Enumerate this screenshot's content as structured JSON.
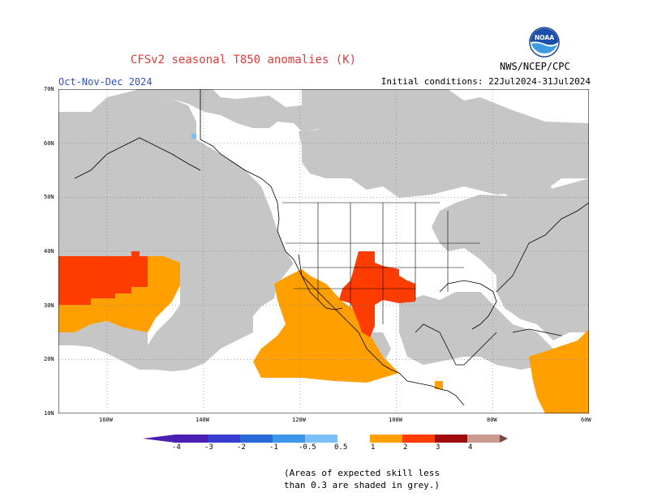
{
  "header": {
    "title": "CFSv2 seasonal T850 anomalies (K)",
    "season": "Oct-Nov-Dec 2024",
    "initial_conditions": "Initial conditions: 22Jul2024-31Jul2024",
    "agency": "NWS/NCEP/CPC",
    "logo_text": "NOAA"
  },
  "map": {
    "lat_labels": [
      "70N",
      "60N",
      "50N",
      "40N",
      "30N",
      "20N",
      "10N"
    ],
    "lon_labels": [
      "160W",
      "140W",
      "120W",
      "100W",
      "80W",
      "60W"
    ],
    "colors": {
      "skill_grey": "#c6c6c6",
      "anom_0.5_1": "#ffa000",
      "anom_1_2": "#ff3c00",
      "ocean_land": "#ffffff"
    }
  },
  "colorbar": {
    "labels": [
      "-4",
      "-3",
      "-2",
      "-1",
      "-0.5",
      "0.5",
      "1",
      "2",
      "3",
      "4"
    ],
    "colors": [
      "#4b1fb4",
      "#3a3ccf",
      "#2a6ad6",
      "#3c96ea",
      "#7cbff6",
      "#ffffff",
      "#ffa000",
      "#ff3c00",
      "#a00a0a",
      "#c89a90",
      "#7a4a40"
    ]
  },
  "footnote": {
    "line1": "(Areas of expected skill less",
    "line2": "than 0.3 are shaded in grey.)"
  }
}
